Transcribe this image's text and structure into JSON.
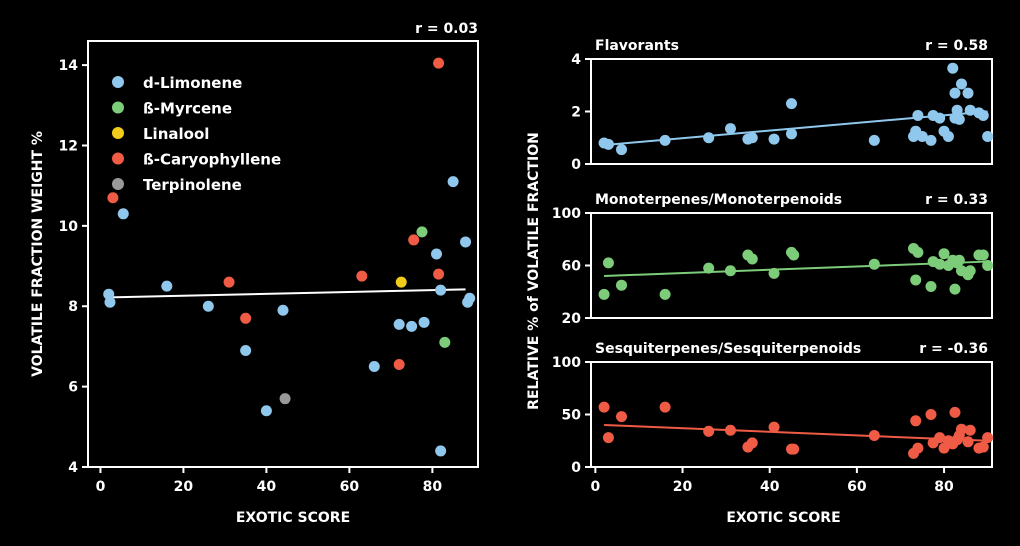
{
  "chart_data": [
    {
      "type": "scatter",
      "title": "",
      "annotation": "r = 0.03",
      "xlabel": "EXOTIC SCORE",
      "ylabel": "VOLATILE FRACTION WEIGHT  %",
      "xlim": [
        -3,
        91
      ],
      "ylim": [
        4,
        14.6
      ],
      "xticks": [
        0,
        20,
        40,
        60,
        80
      ],
      "yticks": [
        4,
        6,
        8,
        10,
        12,
        14
      ],
      "legend_position": "top-left",
      "legend": [
        {
          "name": "d-Limonene",
          "color": "#8fc8ec"
        },
        {
          "name": "ß-Myrcene",
          "color": "#7dcc7a"
        },
        {
          "name": "Linalool",
          "color": "#f2cc1a"
        },
        {
          "name": "ß-Caryophyllene",
          "color": "#ef5b45"
        },
        {
          "name": "Terpinolene",
          "color": "#999999"
        }
      ],
      "trendline": {
        "x": [
          2,
          88
        ],
        "y": [
          8.22,
          8.42
        ],
        "color": "#ffffff"
      },
      "series": [
        {
          "name": "d-Limonene",
          "color": "#8fc8ec",
          "points": [
            [
              2,
              8.3
            ],
            [
              2.3,
              8.1
            ],
            [
              5.5,
              10.3
            ],
            [
              16,
              8.5
            ],
            [
              26,
              8.0
            ],
            [
              35,
              6.9
            ],
            [
              40,
              5.4
            ],
            [
              44,
              7.9
            ],
            [
              66,
              6.5
            ],
            [
              72,
              7.55
            ],
            [
              75,
              7.5
            ],
            [
              78,
              7.6
            ],
            [
              81,
              9.3
            ],
            [
              82,
              8.4
            ],
            [
              82,
              4.4
            ],
            [
              85,
              11.1
            ],
            [
              88,
              9.6
            ],
            [
              88.5,
              8.1
            ],
            [
              89,
              8.2
            ]
          ]
        },
        {
          "name": "ß-Myrcene",
          "color": "#7dcc7a",
          "points": [
            [
              77.5,
              9.85
            ],
            [
              83,
              7.1
            ]
          ]
        },
        {
          "name": "Linalool",
          "color": "#f2cc1a",
          "points": [
            [
              72.5,
              8.6
            ]
          ]
        },
        {
          "name": "ß-Caryophyllene",
          "color": "#ef5b45",
          "points": [
            [
              3,
              10.7
            ],
            [
              31,
              8.6
            ],
            [
              35,
              7.7
            ],
            [
              63,
              8.75
            ],
            [
              72,
              6.55
            ],
            [
              75.5,
              9.65
            ],
            [
              81.5,
              14.05
            ],
            [
              81.5,
              8.8
            ]
          ]
        },
        {
          "name": "Terpinolene",
          "color": "#999999",
          "points": [
            [
              44.5,
              5.7
            ]
          ]
        }
      ]
    },
    {
      "type": "scatter",
      "title": "Flavorants",
      "annotation": "r = 0.58",
      "xlim": [
        -1,
        91
      ],
      "ylim": [
        0,
        4
      ],
      "yticks": [
        0,
        2,
        4
      ],
      "color": "#8fc8ec",
      "trendline": {
        "x": [
          2,
          90
        ],
        "y": [
          0.72,
          2.0
        ]
      },
      "points": [
        [
          2,
          0.8
        ],
        [
          3,
          0.75
        ],
        [
          6,
          0.55
        ],
        [
          16,
          0.9
        ],
        [
          26,
          1.0
        ],
        [
          31,
          1.35
        ],
        [
          35,
          0.95
        ],
        [
          36,
          1.0
        ],
        [
          41,
          0.95
        ],
        [
          45,
          1.15
        ],
        [
          45,
          2.3
        ],
        [
          64,
          0.9
        ],
        [
          73,
          1.05
        ],
        [
          73.5,
          1.25
        ],
        [
          74,
          1.85
        ],
        [
          75,
          1.05
        ],
        [
          77,
          0.9
        ],
        [
          77.5,
          1.85
        ],
        [
          79,
          1.75
        ],
        [
          80,
          1.25
        ],
        [
          81,
          1.05
        ],
        [
          82,
          3.65
        ],
        [
          82.5,
          1.75
        ],
        [
          82.5,
          2.7
        ],
        [
          83,
          2.05
        ],
        [
          83.5,
          1.7
        ],
        [
          84,
          3.05
        ],
        [
          85.5,
          2.7
        ],
        [
          86,
          2.05
        ],
        [
          88,
          1.95
        ],
        [
          89,
          1.85
        ],
        [
          90,
          1.05
        ]
      ]
    },
    {
      "type": "scatter",
      "title": "Monoterpenes/Monoterpenoids",
      "annotation": "r = 0.33",
      "xlim": [
        -1,
        91
      ],
      "ylim": [
        20,
        100
      ],
      "yticks": [
        20,
        60,
        100
      ],
      "color": "#7dcc7a",
      "trendline": {
        "x": [
          2,
          90
        ],
        "y": [
          52,
          63
        ]
      },
      "points": [
        [
          2,
          38
        ],
        [
          3,
          62
        ],
        [
          6,
          45
        ],
        [
          16,
          38
        ],
        [
          26,
          58
        ],
        [
          31,
          56
        ],
        [
          35,
          68
        ],
        [
          36,
          65
        ],
        [
          41,
          54
        ],
        [
          45,
          70
        ],
        [
          45.5,
          68
        ],
        [
          64,
          61
        ],
        [
          73,
          73
        ],
        [
          73.5,
          49
        ],
        [
          74,
          70
        ],
        [
          77,
          44
        ],
        [
          77.5,
          63
        ],
        [
          79,
          61
        ],
        [
          80,
          69
        ],
        [
          81,
          60
        ],
        [
          82,
          64
        ],
        [
          82.5,
          42
        ],
        [
          83,
          62
        ],
        [
          83.5,
          64
        ],
        [
          84,
          56
        ],
        [
          85.5,
          53
        ],
        [
          86,
          56
        ],
        [
          88,
          68
        ],
        [
          89,
          68
        ],
        [
          90,
          60
        ]
      ]
    },
    {
      "type": "scatter",
      "title": "Sesquiterpenes/Sesquiterpenoids",
      "annotation": "r = -0.36",
      "xlabel": "EXOTIC SCORE",
      "xlim": [
        -1,
        91
      ],
      "ylim": [
        0,
        100
      ],
      "xticks": [
        0,
        20,
        40,
        60,
        80
      ],
      "yticks": [
        0,
        50,
        100
      ],
      "color": "#ef5b45",
      "trendline": {
        "x": [
          2,
          90
        ],
        "y": [
          40,
          25
        ]
      },
      "points": [
        [
          2,
          57
        ],
        [
          3,
          28
        ],
        [
          6,
          48
        ],
        [
          16,
          57
        ],
        [
          26,
          34
        ],
        [
          31,
          35
        ],
        [
          35,
          19
        ],
        [
          36,
          23
        ],
        [
          41,
          38
        ],
        [
          45,
          17
        ],
        [
          45.5,
          17
        ],
        [
          64,
          30
        ],
        [
          73,
          13
        ],
        [
          73.5,
          44
        ],
        [
          74,
          18
        ],
        [
          77,
          50
        ],
        [
          77.5,
          23
        ],
        [
          79,
          28
        ],
        [
          80,
          18
        ],
        [
          81,
          25
        ],
        [
          82,
          22
        ],
        [
          82.5,
          52
        ],
        [
          83,
          26
        ],
        [
          83.5,
          30
        ],
        [
          84,
          36
        ],
        [
          85.5,
          24
        ],
        [
          86,
          35
        ],
        [
          88,
          18
        ],
        [
          89,
          19
        ],
        [
          90,
          28
        ]
      ]
    }
  ],
  "shared_ylabel": "RELATIVE  % of VOLATILE FRACTION"
}
